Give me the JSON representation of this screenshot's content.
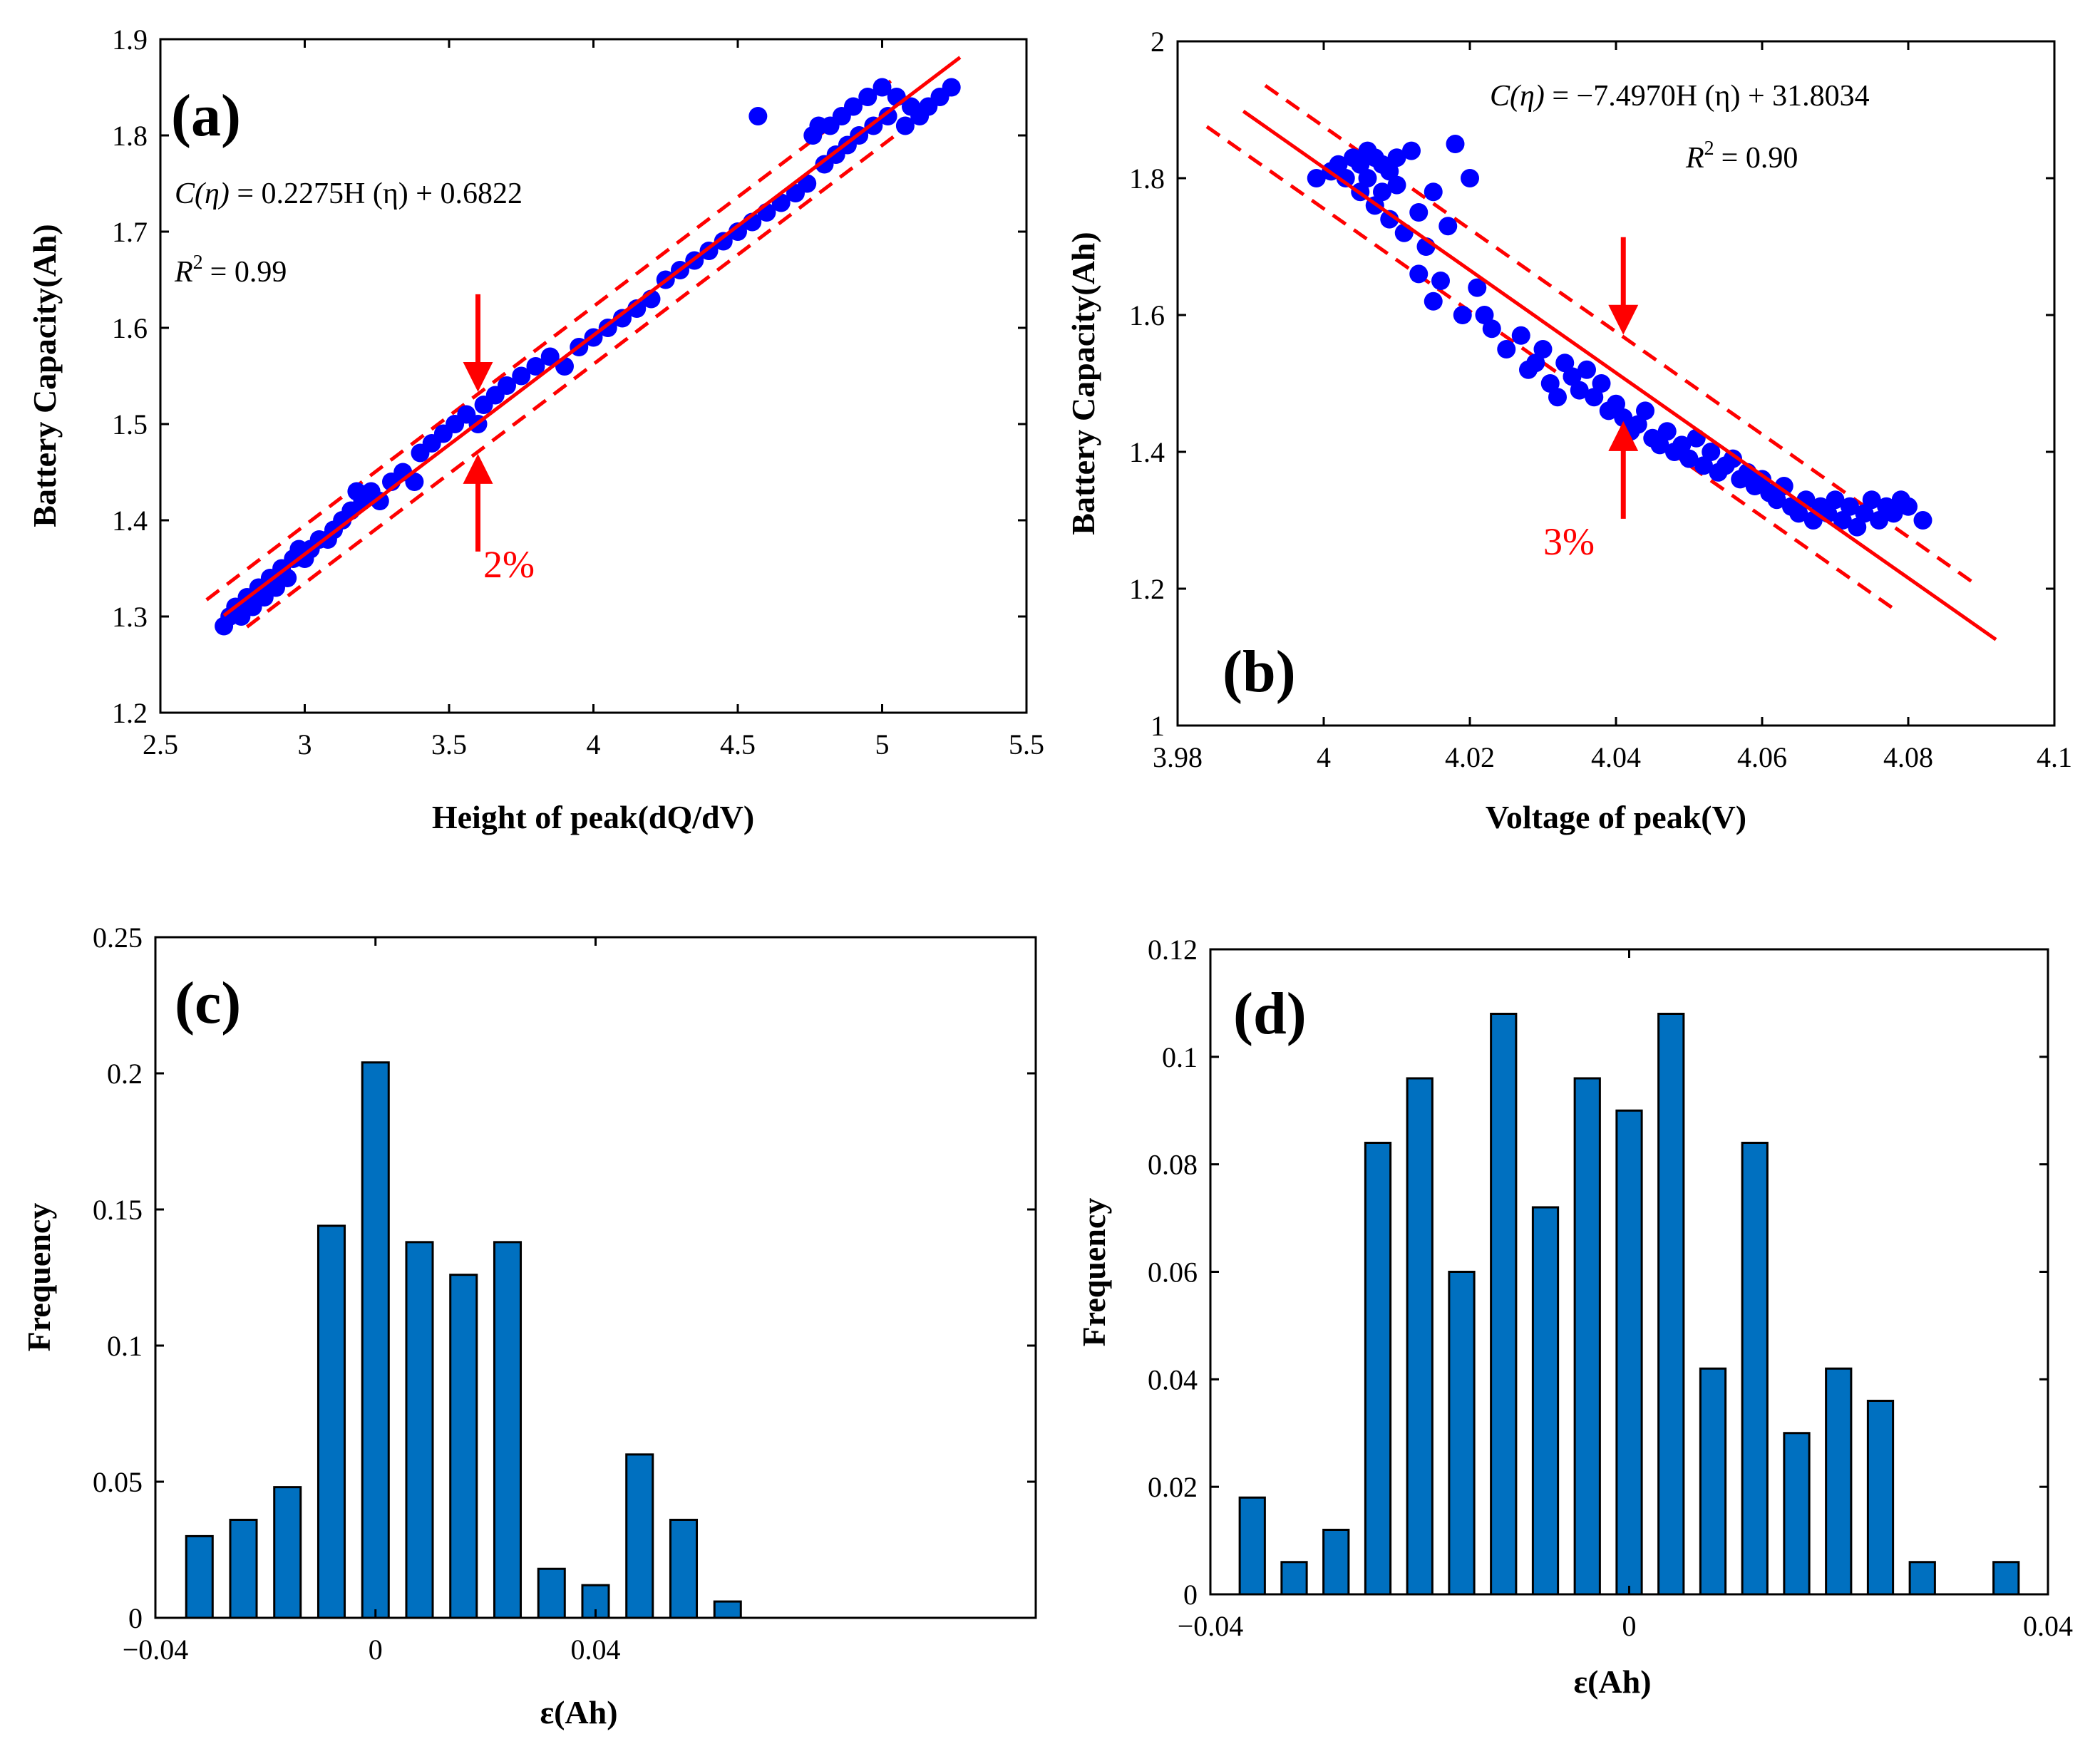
{
  "chart_data": [
    {
      "id": "a",
      "type": "scatter",
      "panel_label": "(a)",
      "xlabel": "Height of peak(dQ/dV)",
      "ylabel": "Battery Capacity(Ah)",
      "xlim": [
        2.5,
        5.5
      ],
      "ylim": [
        1.2,
        1.9
      ],
      "xticks": [
        2.5,
        3,
        3.5,
        4,
        4.5,
        5,
        5.5
      ],
      "yticks": [
        1.2,
        1.3,
        1.4,
        1.5,
        1.6,
        1.7,
        1.8,
        1.9
      ],
      "equation_lhs": "C(η)",
      "equation_rhs": "= 0.2275H (η) + 0.6822",
      "r2_label": "R",
      "r2_value": "= 0.99",
      "fit": {
        "slope": 0.2275,
        "intercept": 0.6822,
        "x_range": [
          2.72,
          5.27
        ]
      },
      "band": {
        "offset": 0.03,
        "x_range": [
          2.66,
          5.03
        ]
      },
      "band_lower_x": [
        2.8,
        5.25
      ],
      "band_label": "2%",
      "arrow_x": 3.6,
      "marker_color": "#0000ff",
      "fit_color": "#ff0000",
      "points": [
        [
          2.72,
          1.29
        ],
        [
          2.74,
          1.3
        ],
        [
          2.76,
          1.31
        ],
        [
          2.78,
          1.3
        ],
        [
          2.8,
          1.32
        ],
        [
          2.82,
          1.31
        ],
        [
          2.84,
          1.33
        ],
        [
          2.86,
          1.32
        ],
        [
          2.88,
          1.34
        ],
        [
          2.9,
          1.33
        ],
        [
          2.92,
          1.35
        ],
        [
          2.94,
          1.34
        ],
        [
          2.96,
          1.36
        ],
        [
          2.98,
          1.37
        ],
        [
          3.0,
          1.36
        ],
        [
          3.02,
          1.37
        ],
        [
          3.05,
          1.38
        ],
        [
          3.08,
          1.38
        ],
        [
          3.1,
          1.39
        ],
        [
          3.13,
          1.4
        ],
        [
          3.16,
          1.41
        ],
        [
          3.18,
          1.43
        ],
        [
          3.2,
          1.42
        ],
        [
          3.23,
          1.43
        ],
        [
          3.26,
          1.42
        ],
        [
          3.3,
          1.44
        ],
        [
          3.34,
          1.45
        ],
        [
          3.38,
          1.44
        ],
        [
          3.4,
          1.47
        ],
        [
          3.44,
          1.48
        ],
        [
          3.48,
          1.49
        ],
        [
          3.52,
          1.5
        ],
        [
          3.56,
          1.51
        ],
        [
          3.6,
          1.5
        ],
        [
          3.62,
          1.52
        ],
        [
          3.66,
          1.53
        ],
        [
          3.7,
          1.54
        ],
        [
          3.75,
          1.55
        ],
        [
          3.8,
          1.56
        ],
        [
          3.85,
          1.57
        ],
        [
          3.9,
          1.56
        ],
        [
          3.95,
          1.58
        ],
        [
          4.0,
          1.59
        ],
        [
          4.05,
          1.6
        ],
        [
          4.1,
          1.61
        ],
        [
          4.15,
          1.62
        ],
        [
          4.2,
          1.63
        ],
        [
          4.25,
          1.65
        ],
        [
          4.3,
          1.66
        ],
        [
          4.35,
          1.67
        ],
        [
          4.4,
          1.68
        ],
        [
          4.45,
          1.69
        ],
        [
          4.5,
          1.7
        ],
        [
          4.55,
          1.71
        ],
        [
          4.57,
          1.82
        ],
        [
          4.6,
          1.72
        ],
        [
          4.65,
          1.73
        ],
        [
          4.7,
          1.74
        ],
        [
          4.74,
          1.75
        ],
        [
          4.76,
          1.8
        ],
        [
          4.78,
          1.81
        ],
        [
          4.8,
          1.77
        ],
        [
          4.82,
          1.81
        ],
        [
          4.84,
          1.78
        ],
        [
          4.86,
          1.82
        ],
        [
          4.88,
          1.79
        ],
        [
          4.9,
          1.83
        ],
        [
          4.92,
          1.8
        ],
        [
          4.95,
          1.84
        ],
        [
          4.97,
          1.81
        ],
        [
          5.0,
          1.85
        ],
        [
          5.02,
          1.82
        ],
        [
          5.05,
          1.84
        ],
        [
          5.08,
          1.81
        ],
        [
          5.1,
          1.83
        ],
        [
          5.13,
          1.82
        ],
        [
          5.16,
          1.83
        ],
        [
          5.2,
          1.84
        ],
        [
          5.24,
          1.85
        ]
      ]
    },
    {
      "id": "b",
      "type": "scatter",
      "panel_label": "(b)",
      "xlabel": "Voltage of peak(V)",
      "ylabel": "Battery Capacity(Ah)",
      "xlim": [
        3.98,
        4.1
      ],
      "ylim": [
        1.0,
        2.0
      ],
      "xticks": [
        3.98,
        4.0,
        4.02,
        4.04,
        4.06,
        4.08,
        4.1
      ],
      "xtick_labels": [
        "3.98",
        "4",
        "4.02",
        "4.04",
        "4.06",
        "4.08",
        "4.1"
      ],
      "yticks": [
        1.0,
        1.2,
        1.4,
        1.6,
        1.8,
        2.0
      ],
      "ytick_labels": [
        "1",
        "1.2",
        "1.4",
        "1.6",
        "1.8",
        "2"
      ],
      "equation_lhs": "C(η)",
      "equation_rhs": "= −7.4970H (η) + 31.8034",
      "r2_label": "R",
      "r2_value": "= 0.90",
      "fit": {
        "slope": -7.497,
        "intercept": 31.8034,
        "x_range": [
          3.989,
          4.092
        ]
      },
      "band": {
        "offset": 0.06,
        "x_range": [
          3.992,
          4.089
        ]
      },
      "band_lower_x": [
        3.984,
        4.078
      ],
      "band_label": "3%",
      "arrow_x": 4.041,
      "marker_color": "#0000ff",
      "fit_color": "#ff0000",
      "points": [
        [
          3.999,
          1.8
        ],
        [
          4.001,
          1.81
        ],
        [
          4.002,
          1.82
        ],
        [
          4.003,
          1.8
        ],
        [
          4.004,
          1.83
        ],
        [
          4.005,
          1.82
        ],
        [
          4.005,
          1.78
        ],
        [
          4.006,
          1.84
        ],
        [
          4.006,
          1.8
        ],
        [
          4.007,
          1.83
        ],
        [
          4.007,
          1.76
        ],
        [
          4.008,
          1.82
        ],
        [
          4.008,
          1.78
        ],
        [
          4.009,
          1.81
        ],
        [
          4.009,
          1.74
        ],
        [
          4.01,
          1.83
        ],
        [
          4.01,
          1.79
        ],
        [
          4.011,
          1.72
        ],
        [
          4.012,
          1.84
        ],
        [
          4.013,
          1.66
        ],
        [
          4.013,
          1.75
        ],
        [
          4.014,
          1.7
        ],
        [
          4.015,
          1.62
        ],
        [
          4.015,
          1.78
        ],
        [
          4.016,
          1.65
        ],
        [
          4.017,
          1.73
        ],
        [
          4.018,
          1.85
        ],
        [
          4.019,
          1.6
        ],
        [
          4.02,
          1.8
        ],
        [
          4.021,
          1.64
        ],
        [
          4.022,
          1.6
        ],
        [
          4.023,
          1.58
        ],
        [
          4.025,
          1.55
        ],
        [
          4.027,
          1.57
        ],
        [
          4.028,
          1.52
        ],
        [
          4.029,
          1.53
        ],
        [
          4.03,
          1.55
        ],
        [
          4.031,
          1.5
        ],
        [
          4.032,
          1.48
        ],
        [
          4.033,
          1.53
        ],
        [
          4.034,
          1.51
        ],
        [
          4.035,
          1.49
        ],
        [
          4.036,
          1.52
        ],
        [
          4.037,
          1.48
        ],
        [
          4.038,
          1.5
        ],
        [
          4.039,
          1.46
        ],
        [
          4.04,
          1.47
        ],
        [
          4.041,
          1.45
        ],
        [
          4.042,
          1.43
        ],
        [
          4.043,
          1.44
        ],
        [
          4.044,
          1.46
        ],
        [
          4.045,
          1.42
        ],
        [
          4.046,
          1.41
        ],
        [
          4.047,
          1.43
        ],
        [
          4.048,
          1.4
        ],
        [
          4.049,
          1.41
        ],
        [
          4.05,
          1.39
        ],
        [
          4.051,
          1.42
        ],
        [
          4.052,
          1.38
        ],
        [
          4.053,
          1.4
        ],
        [
          4.054,
          1.37
        ],
        [
          4.055,
          1.38
        ],
        [
          4.056,
          1.39
        ],
        [
          4.057,
          1.36
        ],
        [
          4.058,
          1.37
        ],
        [
          4.059,
          1.35
        ],
        [
          4.06,
          1.36
        ],
        [
          4.061,
          1.34
        ],
        [
          4.062,
          1.33
        ],
        [
          4.063,
          1.35
        ],
        [
          4.064,
          1.32
        ],
        [
          4.065,
          1.31
        ],
        [
          4.066,
          1.33
        ],
        [
          4.067,
          1.3
        ],
        [
          4.068,
          1.32
        ],
        [
          4.069,
          1.31
        ],
        [
          4.07,
          1.33
        ],
        [
          4.071,
          1.3
        ],
        [
          4.072,
          1.32
        ],
        [
          4.073,
          1.29
        ],
        [
          4.074,
          1.31
        ],
        [
          4.075,
          1.33
        ],
        [
          4.076,
          1.3
        ],
        [
          4.077,
          1.32
        ],
        [
          4.078,
          1.31
        ],
        [
          4.079,
          1.33
        ],
        [
          4.08,
          1.32
        ],
        [
          4.082,
          1.3
        ]
      ]
    },
    {
      "id": "c",
      "type": "bar",
      "panel_label": "(c)",
      "xlabel": "ε(Ah)",
      "ylabel": "Frequency",
      "xlim": [
        -0.04,
        0.12
      ],
      "ylim": [
        0,
        0.25
      ],
      "xticks": [
        -0.04,
        0,
        0.04
      ],
      "xtick_labels": [
        "−0.04",
        "0",
        "0.04"
      ],
      "yticks": [
        0,
        0.05,
        0.1,
        0.15,
        0.2,
        0.25
      ],
      "ytick_labels": [
        "0",
        "0.05",
        "0.1",
        "0.15",
        "0.2",
        "0.25"
      ],
      "bar_width": 0.0048,
      "bar_color": "#0070c0",
      "centers": [
        -0.032,
        -0.024,
        -0.016,
        -0.008,
        0.0,
        0.008,
        0.016,
        0.024,
        0.032,
        0.04,
        0.048,
        0.056,
        0.064
      ],
      "values": [
        0.03,
        0.036,
        0.048,
        0.144,
        0.204,
        0.138,
        0.126,
        0.138,
        0.018,
        0.012,
        0.06,
        0.036,
        0.006
      ]
    },
    {
      "id": "d",
      "type": "bar",
      "panel_label": "(d)",
      "xlabel": "ε(Ah)",
      "ylabel": "Frequency",
      "xlim": [
        -0.04,
        0.04
      ],
      "ylim": [
        0,
        0.12
      ],
      "xticks": [
        -0.04,
        0,
        0.04
      ],
      "xtick_labels": [
        "−0.04",
        "0",
        "0.04"
      ],
      "yticks": [
        0,
        0.02,
        0.04,
        0.06,
        0.08,
        0.1,
        0.12
      ],
      "ytick_labels": [
        "0",
        "0.02",
        "0.04",
        "0.06",
        "0.08",
        "0.1",
        "0.12"
      ],
      "bar_width": 0.0024,
      "bar_color": "#0070c0",
      "centers": [
        -0.036,
        -0.032,
        -0.028,
        -0.024,
        -0.02,
        -0.016,
        -0.012,
        -0.008,
        -0.004,
        0.0,
        0.004,
        0.008,
        0.012,
        0.016,
        0.02,
        0.024,
        0.028,
        0.032,
        0.036
      ],
      "values": [
        0.018,
        0.006,
        0.012,
        0.084,
        0.096,
        0.06,
        0.108,
        0.072,
        0.096,
        0.09,
        0.108,
        0.042,
        0.084,
        0.03,
        0.042,
        0.036,
        0.006,
        0.0,
        0.006
      ]
    }
  ]
}
